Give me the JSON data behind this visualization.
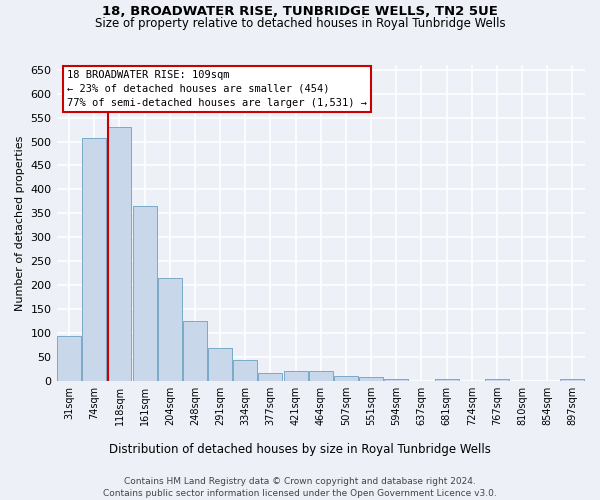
{
  "title": "18, BROADWATER RISE, TUNBRIDGE WELLS, TN2 5UE",
  "subtitle": "Size of property relative to detached houses in Royal Tunbridge Wells",
  "xlabel": "Distribution of detached houses by size in Royal Tunbridge Wells",
  "ylabel": "Number of detached properties",
  "footnote1": "Contains HM Land Registry data © Crown copyright and database right 2024.",
  "footnote2": "Contains public sector information licensed under the Open Government Licence v3.0.",
  "bin_labels": [
    "31sqm",
    "74sqm",
    "118sqm",
    "161sqm",
    "204sqm",
    "248sqm",
    "291sqm",
    "334sqm",
    "377sqm",
    "421sqm",
    "464sqm",
    "507sqm",
    "551sqm",
    "594sqm",
    "637sqm",
    "681sqm",
    "724sqm",
    "767sqm",
    "810sqm",
    "854sqm",
    "897sqm"
  ],
  "bar_values": [
    93,
    507,
    530,
    365,
    215,
    125,
    68,
    43,
    17,
    20,
    20,
    10,
    8,
    3,
    0,
    4,
    0,
    3,
    0,
    0,
    3
  ],
  "bar_color": "#c8d8ea",
  "bar_edge_color": "#7aaac8",
  "vline_color": "#cc0000",
  "annotation_line1": "18 BROADWATER RISE: 109sqm",
  "annotation_line2": "← 23% of detached houses are smaller (454)",
  "annotation_line3": "77% of semi-detached houses are larger (1,531) →",
  "annotation_box_facecolor": "white",
  "annotation_box_edgecolor": "#cc0000",
  "ylim": [
    0,
    660
  ],
  "yticks": [
    0,
    50,
    100,
    150,
    200,
    250,
    300,
    350,
    400,
    450,
    500,
    550,
    600,
    650
  ],
  "background_color": "#edf1f7",
  "grid_color": "white"
}
